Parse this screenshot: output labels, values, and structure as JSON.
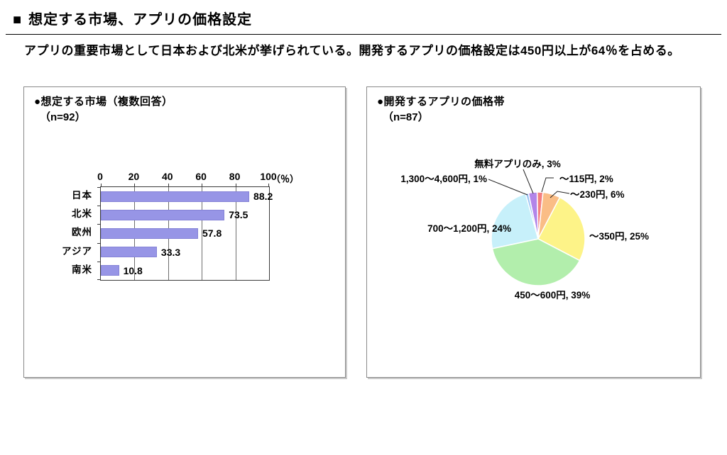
{
  "header": {
    "marker": "■",
    "title": "想定する市場、アプリの価格設定",
    "subtitle": "アプリの重要市場として日本および北米が挙げられている。開発するアプリの価格設定は450円以上が64％を占める。"
  },
  "left_panel": {
    "title": "●想定する市場（複数回答）",
    "sample": "（n=92）"
  },
  "right_panel": {
    "title": "●開発するアプリの価格帯",
    "sample": "（n=87）"
  },
  "chart_data": [
    {
      "type": "bar",
      "orientation": "horizontal",
      "title": "想定する市場（複数回答）",
      "sample_size": "n=92",
      "categories": [
        "日本",
        "北米",
        "欧州",
        "アジア",
        "南米"
      ],
      "values": [
        88.2,
        73.5,
        57.8,
        33.3,
        10.8
      ],
      "xlabel": "（％）",
      "xlim": [
        0,
        100
      ],
      "xticks": [
        0,
        20,
        40,
        60,
        80,
        100
      ],
      "axis_position": "top",
      "grid": true,
      "bar_color": "#9795e6"
    },
    {
      "type": "pie",
      "title": "開発するアプリの価格帯",
      "sample_size": "n=87",
      "start_angle_deg": -12,
      "direction": "clockwise",
      "slices": [
        {
          "label": "無料アプリのみ",
          "pct": 3,
          "color": "#b285e9"
        },
        {
          "label": "～115円",
          "pct": 2,
          "color": "#f47f80"
        },
        {
          "label": "～230円",
          "pct": 6,
          "color": "#fabd86"
        },
        {
          "label": "～350円",
          "pct": 25,
          "color": "#fdf388"
        },
        {
          "label": "450～600円",
          "pct": 39,
          "color": "#b2eeac"
        },
        {
          "label": "700～1,200円",
          "pct": 24,
          "color": "#c7f0fa"
        },
        {
          "label": "1,300～4,600円",
          "pct": 1,
          "color": "#9dc5f4"
        }
      ]
    }
  ]
}
